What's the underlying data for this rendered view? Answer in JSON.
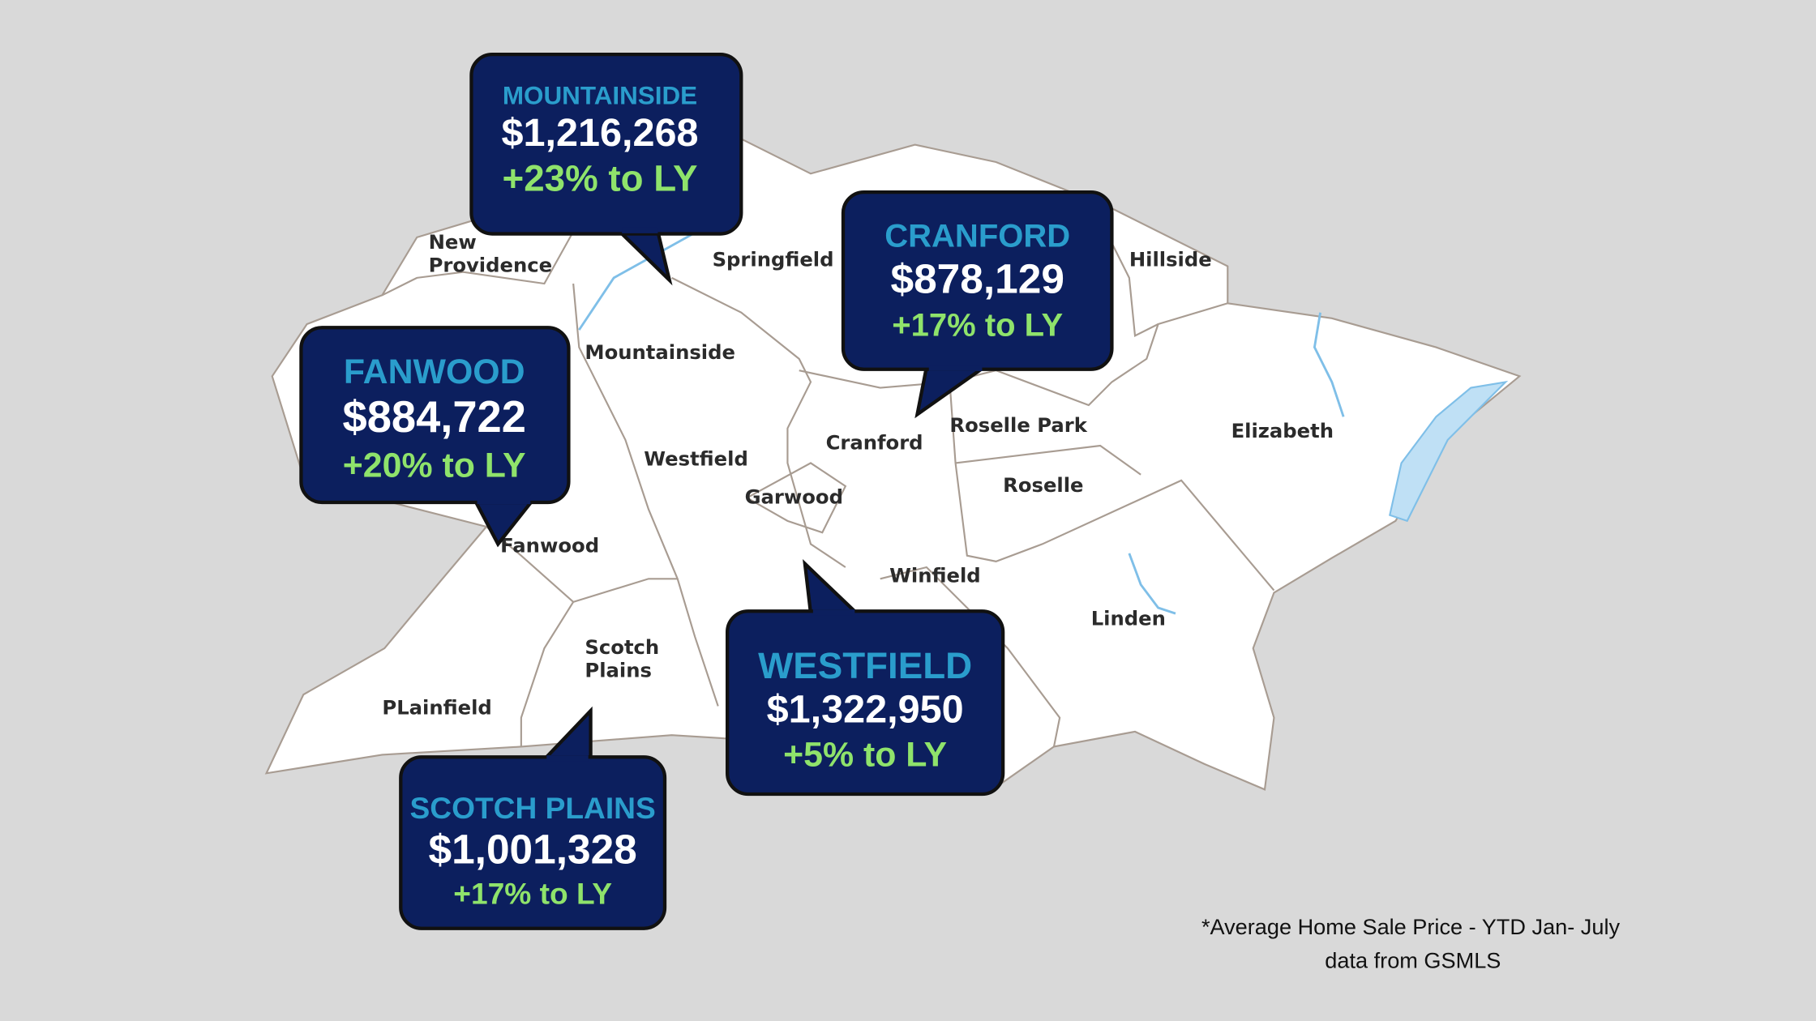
{
  "callouts": [
    {
      "name": "MOUNTAINSIDE",
      "price": "$1,216,268",
      "change": "+23% to LY"
    },
    {
      "name": "CRANFORD",
      "price": "$878,129",
      "change": "+17% to LY"
    },
    {
      "name": "FANWOOD",
      "price": "$884,722",
      "change": "+20% to LY"
    },
    {
      "name": "WESTFIELD",
      "price": "$1,322,950",
      "change": "+5% to LY"
    },
    {
      "name": "SCOTCH PLAINS",
      "price": "$1,001,328",
      "change": "+17% to LY"
    }
  ],
  "map_labels": [
    [
      "New",
      "Providence"
    ],
    [
      "Springfield"
    ],
    [
      "Hillside"
    ],
    [
      "Mountainside"
    ],
    [
      "Roselle Park"
    ],
    [
      "Elizabeth"
    ],
    [
      "Cranford"
    ],
    [
      "Westfield"
    ],
    [
      "Garwood"
    ],
    [
      "Roselle"
    ],
    [
      "Fanwood"
    ],
    [
      "Winfield"
    ],
    [
      "Linden"
    ],
    [
      "Scotch",
      "Plains"
    ],
    [
      "PLainfield"
    ]
  ],
  "footnote": [
    "*Average Home Sale Price - YTD Jan- July",
    "data from GSMLS"
  ]
}
